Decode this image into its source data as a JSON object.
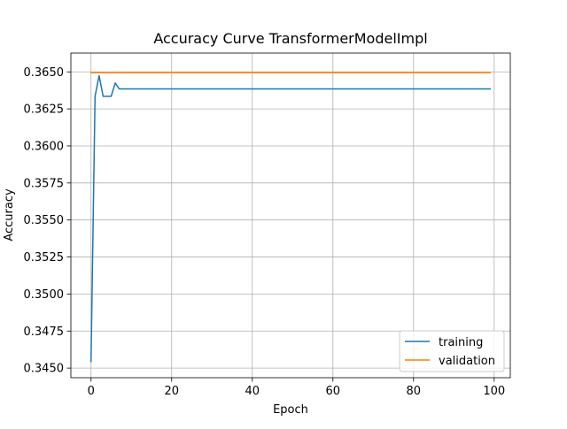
{
  "chart_data": {
    "type": "line",
    "title": "Accuracy Curve TransformerModelImpl",
    "xlabel": "Epoch",
    "ylabel": "Accuracy",
    "xlim": [
      -5,
      104
    ],
    "ylim": [
      0.34435,
      0.36627
    ],
    "xticks": [
      0,
      20,
      40,
      60,
      80,
      100
    ],
    "xtick_labels": [
      "0",
      "20",
      "40",
      "60",
      "80",
      "100"
    ],
    "yticks": [
      0.345,
      0.3475,
      0.35,
      0.3525,
      0.355,
      0.3575,
      0.36,
      0.3625,
      0.365
    ],
    "ytick_labels": [
      "0.3450",
      "0.3475",
      "0.3500",
      "0.3525",
      "0.3550",
      "0.3575",
      "0.3600",
      "0.3625",
      "0.3650"
    ],
    "grid": true,
    "legend": "lower-right",
    "series": [
      {
        "name": "training",
        "color": "#1f77b4",
        "x": [
          0,
          1,
          2,
          3,
          4,
          5,
          6,
          7,
          8,
          99
        ],
        "y": [
          0.34545,
          0.36335,
          0.36475,
          0.36335,
          0.36335,
          0.36335,
          0.36425,
          0.36385,
          0.36385,
          0.36385
        ]
      },
      {
        "name": "validation",
        "color": "#ff7f0e",
        "x": [
          0,
          99
        ],
        "y": [
          0.36495,
          0.36495
        ]
      }
    ]
  }
}
